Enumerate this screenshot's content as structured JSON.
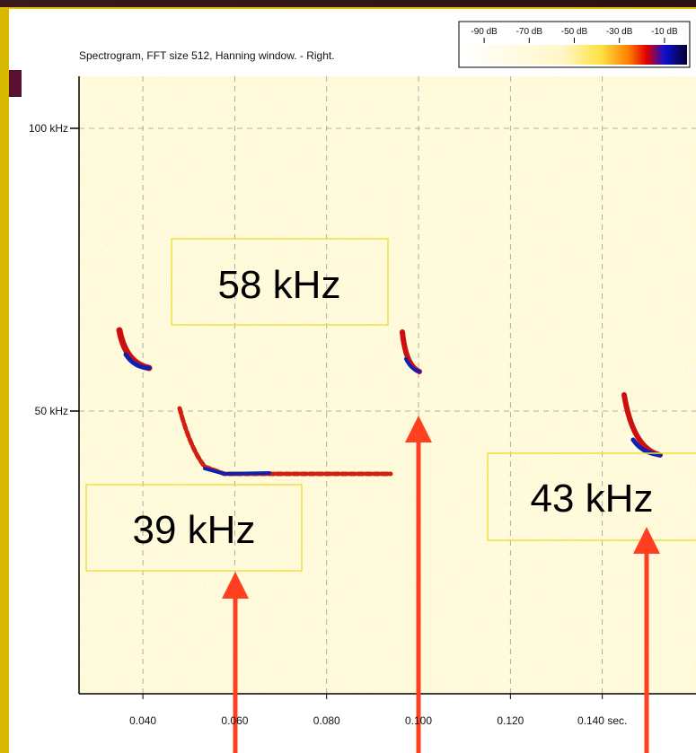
{
  "chart_data": {
    "type": "spectrogram",
    "title": "Spectrogram, FFT size 512, Hanning window. - Right.",
    "xlim": [
      0.0261,
      0.1604
    ],
    "xticks": [
      {
        "value": 0.04,
        "label": "0.040"
      },
      {
        "value": 0.06,
        "label": "0.060"
      },
      {
        "value": 0.08,
        "label": "0.080"
      },
      {
        "value": 0.1,
        "label": "0.100"
      },
      {
        "value": 0.12,
        "label": "0.120"
      },
      {
        "value": 0.14,
        "label": "0.140 sec."
      }
    ],
    "ylim": [
      0,
      109.2
    ],
    "yticks": [
      {
        "value": 50,
        "label": "50 kHz"
      },
      {
        "value": 100,
        "label": "100 kHz"
      }
    ],
    "grid": true,
    "colorbar": {
      "lim": [
        -100,
        0
      ],
      "ticks": [
        {
          "value": -90,
          "label": "-90 dB"
        },
        {
          "value": -70,
          "label": "-70 dB"
        },
        {
          "value": -50,
          "label": "-50 dB"
        },
        {
          "value": -30,
          "label": "-30 dB"
        },
        {
          "value": -10,
          "label": "-10 dB"
        }
      ]
    },
    "annotations": [
      "58 kHz",
      "39 kHz",
      "43 kHz"
    ]
  }
}
